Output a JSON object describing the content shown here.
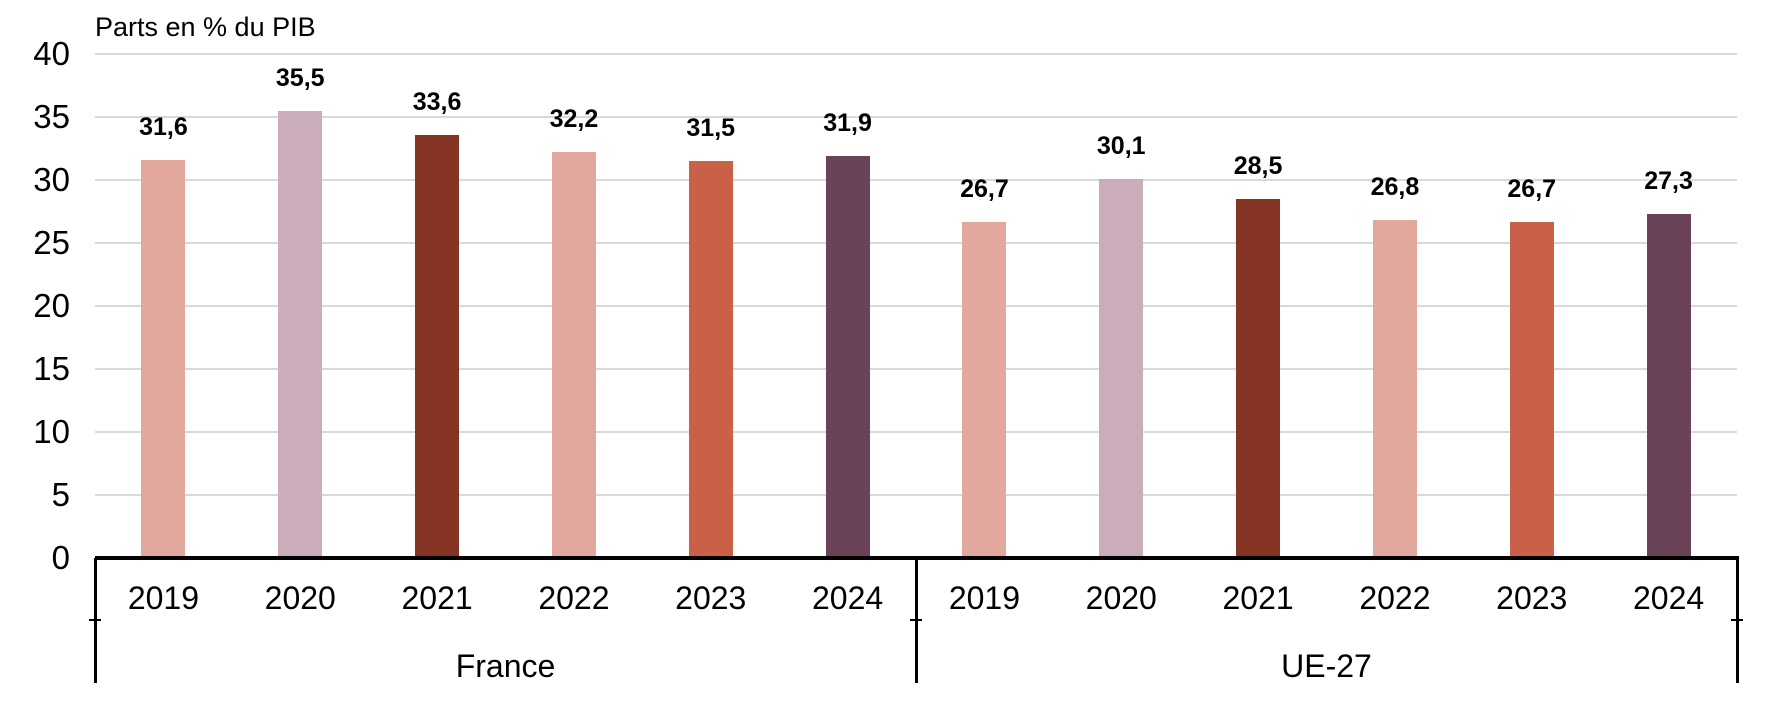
{
  "chart_data": {
    "type": "bar",
    "title": "Parts en % du PIB",
    "xlabel": "",
    "ylabel": "Parts en % du PIB",
    "ylim": [
      0,
      40
    ],
    "ytick_step": 5,
    "yticks": [
      "0",
      "5",
      "10",
      "15",
      "20",
      "25",
      "30",
      "35",
      "40"
    ],
    "grid": "horizontal",
    "legend_position": "none",
    "decimal_separator": ",",
    "groups": [
      {
        "label": "France",
        "categories": [
          "2019",
          "2020",
          "2021",
          "2022",
          "2023",
          "2024"
        ],
        "values": [
          31.6,
          35.5,
          33.6,
          32.2,
          31.5,
          31.9
        ],
        "value_labels": [
          "31,6",
          "35,5",
          "33,6",
          "32,2",
          "31,5",
          "31,9"
        ]
      },
      {
        "label": "UE-27",
        "categories": [
          "2019",
          "2020",
          "2021",
          "2022",
          "2023",
          "2024"
        ],
        "values": [
          26.7,
          30.1,
          28.5,
          26.8,
          26.7,
          27.3
        ],
        "value_labels": [
          "26,7",
          "30,1",
          "28,5",
          "26,8",
          "26,7",
          "27,3"
        ]
      }
    ],
    "year_colors": {
      "2019": "#E3A89D",
      "2020": "#CAACBB",
      "2021": "#853423",
      "2022": "#E3A89D",
      "2023": "#CB6049",
      "2024": "#6B4359"
    },
    "colors": {
      "gridline": "#D9D9D9",
      "axis_line": "#000000",
      "text": "#000000",
      "background": "#FFFFFF"
    }
  }
}
